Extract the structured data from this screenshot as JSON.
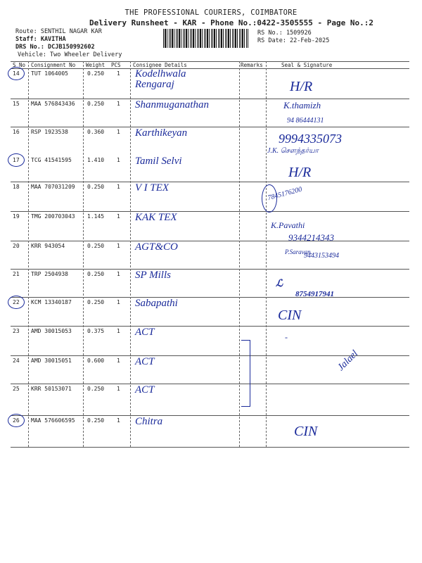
{
  "header": {
    "company": "THE PROFESSIONAL COURIERS, COIMBATORE",
    "subtitle": "Delivery Runsheet - KAR - Phone No.:0422-3505555 - Page No.:2",
    "route": "Route: SENTHIL NAGAR KAR",
    "staff": "Staff: KAVITHA",
    "drs_no": "DRS No.: DCJB150992602",
    "vehicle": "Vehicle: Two Wheeler Delivery",
    "rs_no": "RS No.: 1509926",
    "rs_date": "RS Date: 22-Feb-2025"
  },
  "columns": [
    "S No",
    "Consignment No",
    "Weight",
    "PCS",
    "Consignee Details",
    "Remarks",
    "Seal & Signature"
  ],
  "rows": [
    {
      "sno": "14",
      "cn": "TUT 1064005",
      "weight": "0.250",
      "pcs": "1",
      "consignee": "Kodelhwala Rengaraj",
      "circled": true
    },
    {
      "sno": "15",
      "cn": "MAA 576843436",
      "weight": "0.250",
      "pcs": "1",
      "consignee": "Shanmuganathan",
      "circled": false
    },
    {
      "sno": "16",
      "cn": "RSP 1923538",
      "weight": "0.360",
      "pcs": "1",
      "consignee": "Karthikeyan",
      "circled": false
    },
    {
      "sno": "17",
      "cn": "TCG 41541595",
      "weight": "1.410",
      "pcs": "1",
      "consignee": "Tamil Selvi",
      "circled": true
    },
    {
      "sno": "18",
      "cn": "MAA 707031209",
      "weight": "0.250",
      "pcs": "1",
      "consignee": "V I TEX",
      "circled": false
    },
    {
      "sno": "19",
      "cn": "TMG 200703043",
      "weight": "1.145",
      "pcs": "1",
      "consignee": "KAK TEX",
      "circled": false
    },
    {
      "sno": "20",
      "cn": "KRR 943054",
      "weight": "0.250",
      "pcs": "1",
      "consignee": "AGT&CO",
      "circled": false
    },
    {
      "sno": "21",
      "cn": "TRP 2504938",
      "weight": "0.250",
      "pcs": "1",
      "consignee": "SP Mills",
      "circled": false
    },
    {
      "sno": "22",
      "cn": "KCM 13340187",
      "weight": "0.250",
      "pcs": "1",
      "consignee": "Sabapathi",
      "circled": true
    },
    {
      "sno": "23",
      "cn": "AMD 30015053",
      "weight": "0.375",
      "pcs": "1",
      "consignee": "ACT",
      "circled": false
    },
    {
      "sno": "24",
      "cn": "AMD 30015051",
      "weight": "0.600",
      "pcs": "1",
      "consignee": "ACT",
      "circled": false
    },
    {
      "sno": "25",
      "cn": "KRR 50153071",
      "weight": "0.250",
      "pcs": "1",
      "consignee": "ACT",
      "circled": false
    },
    {
      "sno": "26",
      "cn": "MAA 576606595",
      "weight": "0.250",
      "pcs": "1",
      "consignee": "Chitra",
      "circled": true
    }
  ],
  "signatures": {
    "s14": "H/R",
    "s15a": "K.thamizh",
    "s15b": "94 86444131",
    "s16a": "9994335073",
    "s16b": "J.K. சௌந்தர்யா",
    "s17": "H/R",
    "s18": "7845176200",
    "s19a": "K.Pavathi",
    "s19b": "9344214343",
    "s20a": "P.Saravan.",
    "s20b": "9443153494",
    "s21": "8754917941",
    "s22": "CIN",
    "s23": "-",
    "s24": "Jalael",
    "s26": "CIN"
  },
  "ink_color": "#1a2a9a"
}
